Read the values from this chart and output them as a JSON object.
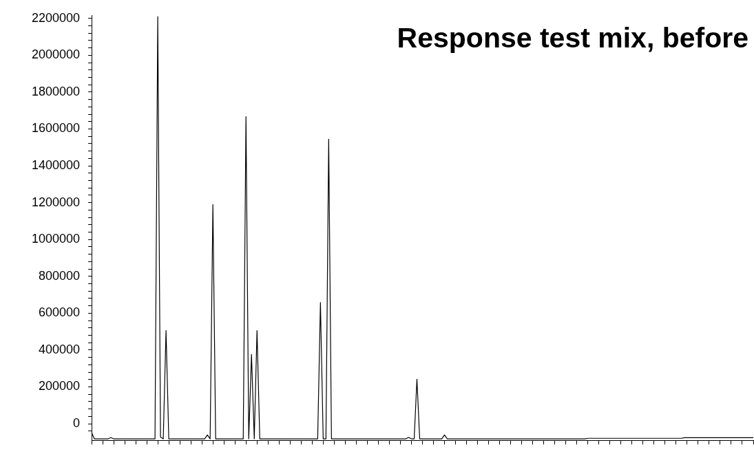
{
  "chart_data": {
    "type": "line",
    "title": "Response test mix, before",
    "tick_labels": "y",
    "grid": false,
    "legend": false,
    "marker": "none",
    "line_style": "solid",
    "categories": [
      null,
      null,
      null,
      null,
      null,
      null,
      null,
      null,
      null,
      null,
      null,
      null,
      null,
      null,
      null,
      null,
      null,
      null,
      null,
      null,
      null,
      null,
      null,
      null,
      null,
      null,
      null,
      null,
      null,
      null,
      null,
      null,
      null,
      null,
      null,
      null,
      null,
      null,
      null,
      null,
      null,
      null,
      null,
      null,
      null,
      null,
      null,
      null,
      null,
      null,
      null,
      null,
      null,
      null,
      null,
      null,
      null,
      null,
      null,
      null,
      null,
      null,
      null,
      null,
      null,
      null,
      null,
      null,
      null,
      null,
      null,
      null,
      null,
      null,
      null,
      null,
      null,
      null,
      null,
      null,
      null,
      null,
      null,
      null,
      null,
      null,
      null,
      null,
      null,
      null,
      null,
      null,
      null,
      null,
      null,
      null,
      null,
      null,
      null,
      null,
      null,
      null,
      null,
      null,
      null,
      null,
      null,
      null,
      null,
      null,
      null,
      null,
      null,
      null,
      null,
      null,
      null,
      null,
      null,
      null,
      null,
      null,
      null,
      null,
      null,
      null,
      null,
      null,
      null,
      null,
      null,
      null,
      null,
      null,
      null,
      null,
      null,
      null,
      null,
      null,
      null,
      null,
      null,
      null,
      null,
      null,
      null,
      null,
      null,
      null,
      null,
      null,
      null,
      null,
      null,
      null,
      null,
      null,
      null,
      null,
      null,
      null,
      null,
      null,
      null,
      null,
      null,
      null,
      null,
      null,
      null,
      null,
      null,
      null,
      null,
      null,
      null,
      null,
      null,
      null,
      null,
      null,
      null,
      null,
      null,
      null,
      null,
      null,
      null,
      null,
      null,
      null,
      null,
      null,
      null,
      null,
      null,
      null,
      null,
      null,
      null,
      null,
      null,
      null,
      null,
      null,
      null,
      null,
      null,
      null,
      null,
      null,
      null,
      null,
      null,
      null,
      null,
      null,
      null,
      null,
      null,
      null,
      null,
      null,
      null,
      null,
      null,
      null,
      null,
      null,
      null,
      null,
      null,
      null,
      null,
      null,
      null,
      null,
      null,
      null,
      null
    ],
    "series": [
      {
        "color": "#000000",
        "values": [
          -47000,
          -82000,
          -82000,
          -82000,
          -82000,
          -82000,
          -82000,
          -75000,
          -82000,
          -82000,
          -82000,
          -82000,
          -82000,
          -82000,
          -82000,
          -82000,
          -82000,
          -82000,
          -82000,
          -82000,
          -82000,
          -82000,
          -82000,
          -82000,
          2210000,
          -72000,
          -82000,
          506000,
          -82000,
          -82000,
          -82000,
          -82000,
          -82000,
          -82000,
          -82000,
          -82000,
          -82000,
          -82000,
          -82000,
          -82000,
          -82000,
          -82000,
          -61000,
          -82000,
          1190000,
          -82000,
          -82000,
          -82000,
          -82000,
          -82000,
          -82000,
          -82000,
          -82000,
          -82000,
          -82000,
          -82000,
          1667000,
          -82000,
          376000,
          -82000,
          506000,
          -82000,
          -82000,
          -82000,
          -82000,
          -82000,
          -82000,
          -82000,
          -82000,
          -82000,
          -82000,
          -82000,
          -82000,
          -82000,
          -82000,
          -82000,
          -82000,
          -82000,
          -82000,
          -82000,
          -82000,
          -82000,
          -82000,
          658000,
          -82000,
          -82000,
          1545000,
          -82000,
          -82000,
          -82000,
          -82000,
          -82000,
          -82000,
          -82000,
          -82000,
          -82000,
          -82000,
          -82000,
          -82000,
          -82000,
          -82000,
          -82000,
          -82000,
          -82000,
          -82000,
          -82000,
          -82000,
          -82000,
          -82000,
          -82000,
          -82000,
          -82000,
          -82000,
          -82000,
          -82000,
          -74000,
          -82000,
          -82000,
          242000,
          -82000,
          -82000,
          -82000,
          -82000,
          -82000,
          -82000,
          -82000,
          -82000,
          -82000,
          -61000,
          -82000,
          -82000,
          -82000,
          -82000,
          -82000,
          -82000,
          -82000,
          -82000,
          -82000,
          -82000,
          -82000,
          -82000,
          -82000,
          -82000,
          -82000,
          -82000,
          -82000,
          -82000,
          -82000,
          -82000,
          -82000,
          -82000,
          -82000,
          -82000,
          -82000,
          -82000,
          -82000,
          -82000,
          -82000,
          -82000,
          -82000,
          -82000,
          -82000,
          -82000,
          -82000,
          -82000,
          -82000,
          -82000,
          -82000,
          -82000,
          -82000,
          -82000,
          -82000,
          -82000,
          -82000,
          -82000,
          -82000,
          -82000,
          -82000,
          -82000,
          -82000,
          -79000,
          -79000,
          -79000,
          -79000,
          -79000,
          -79000,
          -79000,
          -79000,
          -79000,
          -79000,
          -79000,
          -79000,
          -79000,
          -79000,
          -79000,
          -79000,
          -79000,
          -79000,
          -79000,
          -79000,
          -79000,
          -79000,
          -79000,
          -79000,
          -79000,
          -79000,
          -79000,
          -79000,
          -79000,
          -79000,
          -79000,
          -79000,
          -79000,
          -79000,
          -79000,
          -76000,
          -76000,
          -76000,
          -76000,
          -76000,
          -76000,
          -76000,
          -76000,
          -76000,
          -76000,
          -76000,
          -76000,
          -76000,
          -76000,
          -76000,
          -76000,
          -76000,
          -76000,
          -76000,
          -76000,
          -76000,
          -76000,
          -76000,
          -76000,
          -76000,
          -76000
        ]
      }
    ],
    "ylim": [
      -90000,
      2215000
    ],
    "yticks": [
      {
        "value": -40000,
        "label": null
      },
      0,
      {
        "value": 40000,
        "label": null
      },
      {
        "value": 80000,
        "label": null
      },
      {
        "value": 120000,
        "label": null
      },
      {
        "value": 160000,
        "label": null
      },
      200000,
      {
        "value": 240000,
        "label": null
      },
      {
        "value": 280000,
        "label": null
      },
      {
        "value": 320000,
        "label": null
      },
      {
        "value": 360000,
        "label": null
      },
      400000,
      {
        "value": 440000,
        "label": null
      },
      {
        "value": 480000,
        "label": null
      },
      {
        "value": 520000,
        "label": null
      },
      {
        "value": 560000,
        "label": null
      },
      600000,
      {
        "value": 640000,
        "label": null
      },
      {
        "value": 680000,
        "label": null
      },
      {
        "value": 720000,
        "label": null
      },
      {
        "value": 760000,
        "label": null
      },
      800000,
      {
        "value": 840000,
        "label": null
      },
      {
        "value": 880000,
        "label": null
      },
      {
        "value": 920000,
        "label": null
      },
      {
        "value": 960000,
        "label": null
      },
      1000000,
      {
        "value": 1040000,
        "label": null
      },
      {
        "value": 1080000,
        "label": null
      },
      {
        "value": 1120000,
        "label": null
      },
      {
        "value": 1160000,
        "label": null
      },
      1200000,
      {
        "value": 1240000,
        "label": null
      },
      {
        "value": 1280000,
        "label": null
      },
      {
        "value": 1320000,
        "label": null
      },
      {
        "value": 1360000,
        "label": null
      },
      1400000,
      {
        "value": 1440000,
        "label": null
      },
      {
        "value": 1480000,
        "label": null
      },
      {
        "value": 1520000,
        "label": null
      },
      {
        "value": 1560000,
        "label": null
      },
      1600000,
      {
        "value": 1640000,
        "label": null
      },
      {
        "value": 1680000,
        "label": null
      },
      {
        "value": 1720000,
        "label": null
      },
      {
        "value": 1760000,
        "label": null
      },
      1800000,
      {
        "value": 1840000,
        "label": null
      },
      {
        "value": 1880000,
        "label": null
      },
      {
        "value": 1920000,
        "label": null
      },
      {
        "value": 1960000,
        "label": null
      },
      2000000,
      {
        "value": 2040000,
        "label": null
      },
      {
        "value": 2080000,
        "label": null
      },
      {
        "value": 2120000,
        "label": null
      },
      {
        "value": 2160000,
        "label": null
      },
      2200000
    ]
  }
}
